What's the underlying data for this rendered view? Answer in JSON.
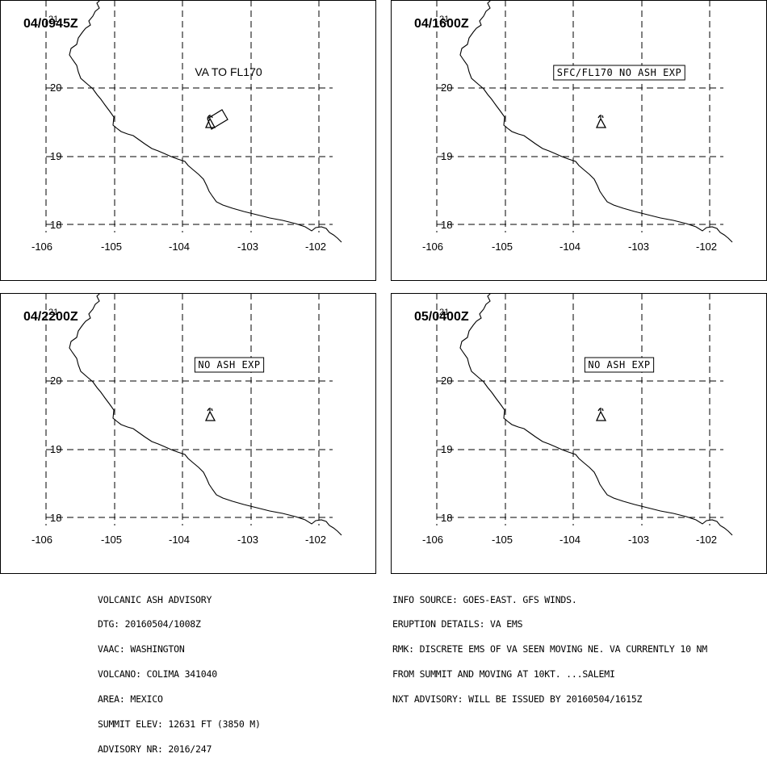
{
  "panels": [
    {
      "time_label": "04/0945Z",
      "annotation": "VA TO FL170",
      "boxed": false,
      "plume": true
    },
    {
      "time_label": "04/1600Z",
      "annotation": "SFC/FL170 NO ASH EXP",
      "boxed": true,
      "plume": false
    },
    {
      "time_label": "04/2200Z",
      "annotation": "NO ASH EXP",
      "boxed": true,
      "plume": false
    },
    {
      "time_label": "05/0400Z",
      "annotation": "NO ASH EXP",
      "boxed": true,
      "plume": false
    }
  ],
  "map": {
    "lon_labels": [
      "-106",
      "-105",
      "-104",
      "-103",
      "-102"
    ],
    "lat_labels": [
      "20",
      "19",
      "18"
    ],
    "corner_label": "21",
    "volcano_marker": "volcano-triangle-icon"
  },
  "advisory_left": {
    "title": "VOLCANIC ASH ADVISORY",
    "dtg": "DTG: 20160504/1008Z",
    "vaac": "VAAC: WASHINGTON",
    "volcano": "VOLCANO: COLIMA 341040",
    "area": "AREA: MEXICO",
    "summit_elev": "SUMMIT ELEV: 12631 FT (3850 M)",
    "advisory_nr": "ADVISORY NR: 2016/247"
  },
  "advisory_right": {
    "info_source": "INFO SOURCE: GOES-EAST. GFS WINDS.",
    "eruption_details": "ERUPTION DETAILS: VA EMS",
    "rmk_line1": "RMK: DISCRETE EMS OF VA SEEN MOVING NE. VA CURRENTLY 10 NM",
    "rmk_line2": "FROM SUMMIT AND MOVING AT 10KT. ...SALEMI",
    "nxt_advisory": "NXT ADVISORY: WILL BE ISSUED BY 20160504/1615Z"
  }
}
